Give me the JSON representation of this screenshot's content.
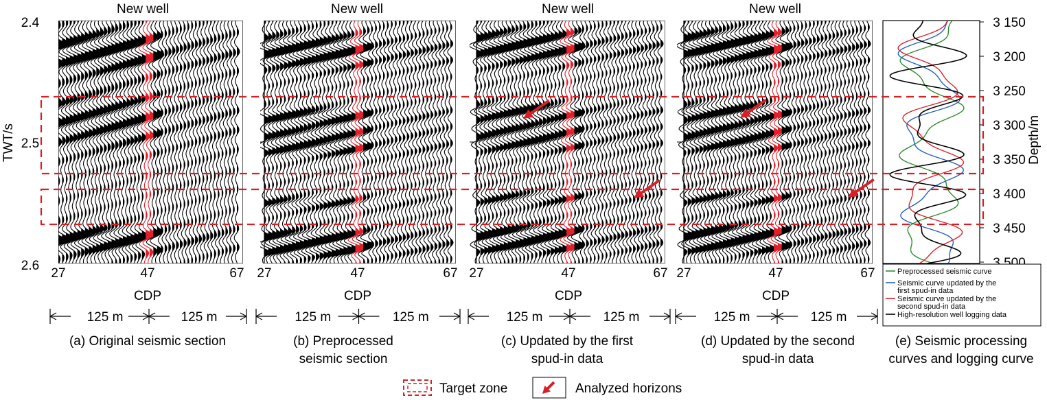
{
  "panel_title": "New well",
  "y_axis_label": "TWT/s",
  "y_ticks": [
    "2.4",
    "2.5",
    "2.6"
  ],
  "x_axis_label": "CDP",
  "x_ticks": [
    "27",
    "47",
    "67"
  ],
  "distance_label": "125 m",
  "panels": [
    {
      "caption_lines": [
        "(a) Original seismic section"
      ]
    },
    {
      "caption_lines": [
        "(b) Preprocessed",
        "seismic section"
      ]
    },
    {
      "caption_lines": [
        "(c) Updated by the first",
        "spud-in data"
      ]
    },
    {
      "caption_lines": [
        "(d) Updated by the second",
        "spud-in data"
      ]
    }
  ],
  "curve_panel": {
    "caption_lines": [
      "(e) Seismic processing",
      "curves and logging curve"
    ],
    "depth_label": "Depth/m",
    "depth_ticks": [
      "3 150",
      "3 200",
      "3 250",
      "3 300",
      "3 350",
      "3 400",
      "3 450",
      "3 500"
    ],
    "legend": [
      {
        "label_lines": [
          "Preprocessed seismic curve"
        ],
        "color": "#2e8b2e"
      },
      {
        "label_lines": [
          "Seismic curve updated by the",
          "first spud-in data"
        ],
        "color": "#1f5fbf"
      },
      {
        "label_lines": [
          "Seismic curve updated by the",
          "second spud-in data"
        ],
        "color": "#e0202a"
      },
      {
        "label_lines": [
          "High-resolution well logging data"
        ],
        "color": "#000000"
      }
    ]
  },
  "bottom_legend": {
    "target_zone": "Target zone",
    "analyzed_horizons": "Analyzed horizons"
  },
  "colors": {
    "target_zone": "#d71f26",
    "well_trace": "#e0202a",
    "arrow": "#d71f26",
    "wiggle": "#000000"
  },
  "chart_data": {
    "type": "seismic-wiggle-section",
    "x_range": [
      27,
      67
    ],
    "y_range_twt_s": [
      2.4,
      2.6
    ],
    "well_cdp": 47,
    "depth_range_m": [
      3150,
      3520
    ],
    "target_zones_twt_s": [
      [
        2.467,
        2.526
      ],
      [
        2.536,
        2.565
      ]
    ]
  }
}
